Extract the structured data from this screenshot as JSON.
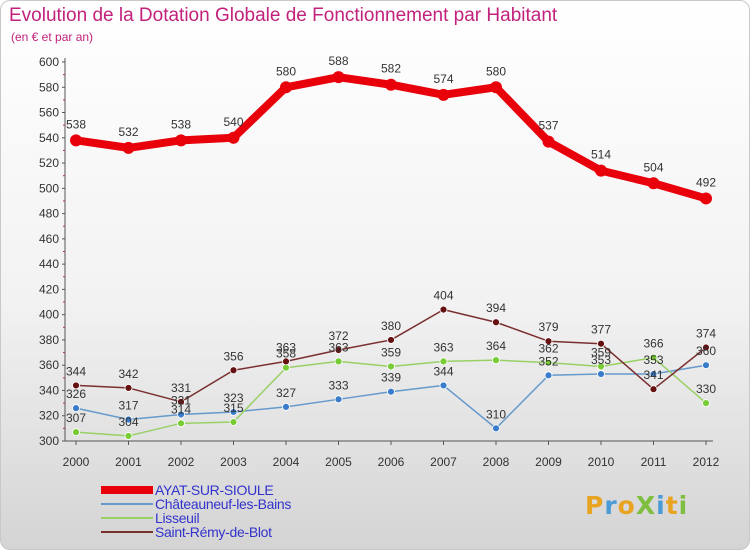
{
  "title": "Evolution de la Dotation Globale de Fonctionnement par Habitant",
  "subtitle": "(en € et par an)",
  "logo": {
    "text": "ProXiti",
    "letters": [
      {
        "ch": "P",
        "color": "#e8a321"
      },
      {
        "ch": "r",
        "color": "#4a9bd6"
      },
      {
        "ch": "o",
        "color": "#e8a321"
      },
      {
        "ch": "X",
        "color": "#7fbf3f"
      },
      {
        "ch": "i",
        "color": "#4a9bd6"
      },
      {
        "ch": "t",
        "color": "#e8a321"
      },
      {
        "ch": "i",
        "color": "#7fbf3f"
      }
    ]
  },
  "chart_data": {
    "type": "line",
    "x": [
      "2000",
      "2001",
      "2002",
      "2003",
      "2004",
      "2005",
      "2006",
      "2007",
      "2008",
      "2009",
      "2010",
      "2011",
      "2012"
    ],
    "ylim": [
      300,
      600
    ],
    "yticks": [
      300,
      320,
      340,
      360,
      380,
      400,
      420,
      440,
      460,
      480,
      500,
      520,
      540,
      560,
      580,
      600
    ],
    "grid": false,
    "legend_position": "bottom-left",
    "series": [
      {
        "name": "AYAT-SUR-SIOULE",
        "color": "#e8000b",
        "width": 8,
        "marker": 6,
        "labels": true,
        "values": [
          538,
          532,
          538,
          540,
          580,
          588,
          582,
          574,
          580,
          537,
          514,
          504,
          492
        ]
      },
      {
        "name": "Châteauneuf-les-Bains",
        "color": "#6699cc",
        "dot": "#3a7ccc",
        "width": 1.5,
        "marker": 3.5,
        "labels": true,
        "values": [
          326,
          317,
          321,
          323,
          327,
          333,
          339,
          344,
          310,
          352,
          353,
          353,
          360
        ]
      },
      {
        "name": "Lisseuil",
        "color": "#99d066",
        "dot": "#77cc33",
        "width": 1.5,
        "marker": 3.5,
        "labels": true,
        "values": [
          307,
          304,
          314,
          315,
          358,
          363,
          359,
          363,
          364,
          362,
          359,
          366,
          330
        ]
      },
      {
        "name": "Saint-Rémy-de-Blot",
        "color": "#7a2f2f",
        "dot": "#661111",
        "width": 1.5,
        "marker": 3.5,
        "labels": true,
        "values": [
          344,
          342,
          331,
          356,
          363,
          372,
          380,
          404,
          394,
          379,
          377,
          341,
          374
        ]
      }
    ]
  }
}
